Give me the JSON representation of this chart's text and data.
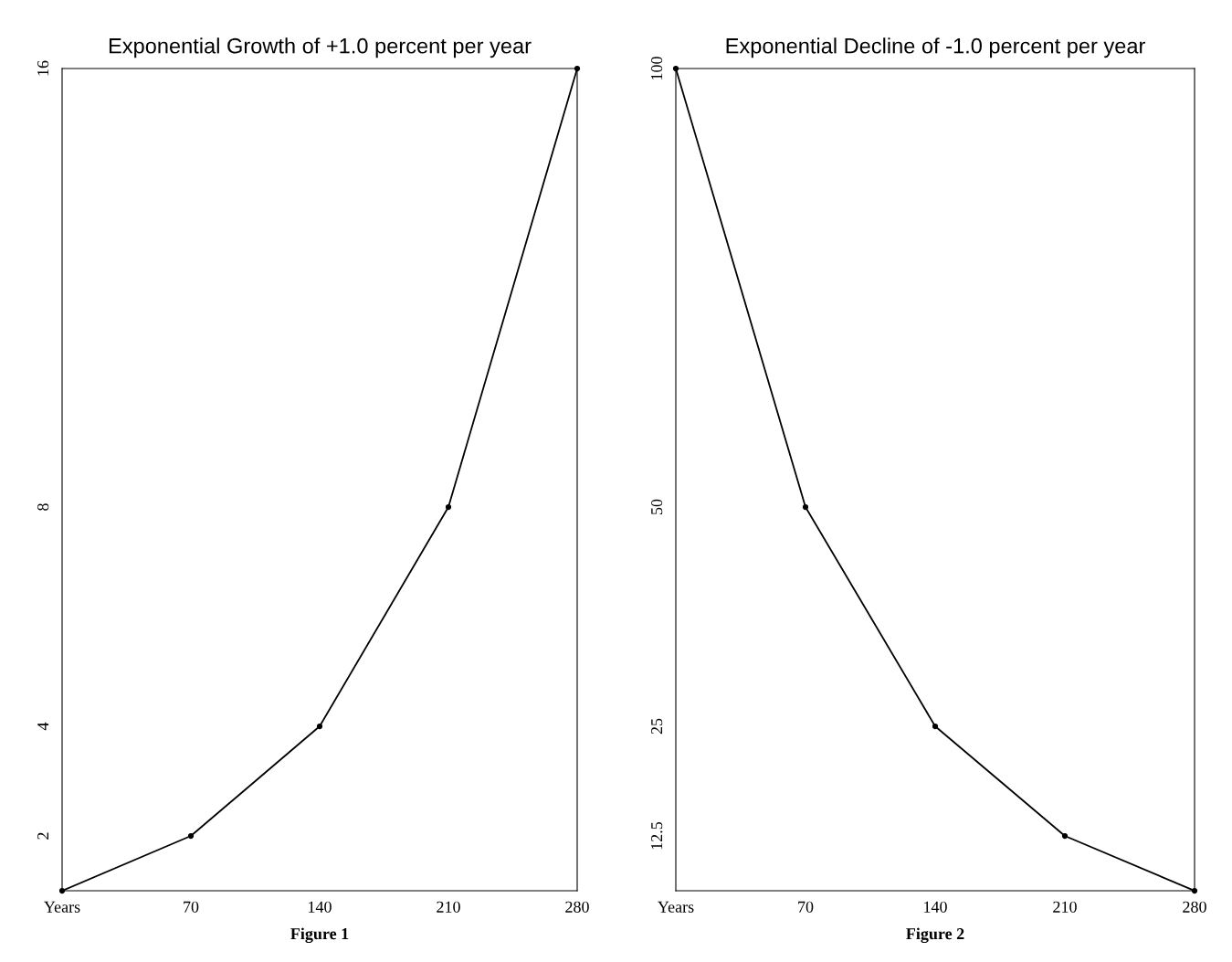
{
  "chart_data": [
    {
      "type": "line",
      "title": "Exponential Growth of +1.0 percent per year",
      "x": [
        0,
        70,
        140,
        210,
        280
      ],
      "series": [
        {
          "color": "#000000",
          "values": [
            1,
            2,
            4,
            8,
            16
          ]
        }
      ],
      "xlim": [
        0,
        280
      ],
      "xticks": [
        {
          "value": 0,
          "label": "Years"
        },
        70,
        140,
        210,
        280
      ],
      "ylim": [
        1,
        16
      ],
      "yticks": [
        2,
        4,
        8,
        16
      ],
      "grid": false,
      "legend": false,
      "marker": "circle",
      "line_style": "solid",
      "annotations": [
        "Figure 1"
      ]
    },
    {
      "type": "line",
      "title": "Exponential Decline of -1.0 percent per year",
      "x": [
        0,
        70,
        140,
        210,
        280
      ],
      "series": [
        {
          "color": "#000000",
          "values": [
            100,
            50,
            25,
            12.5,
            6.25
          ]
        }
      ],
      "xlim": [
        0,
        280
      ],
      "xticks": [
        {
          "value": 0,
          "label": "Years"
        },
        70,
        140,
        210,
        280
      ],
      "ylim": [
        6.25,
        100
      ],
      "yticks": [
        12.5,
        25,
        50,
        100
      ],
      "grid": false,
      "legend": false,
      "marker": "circle",
      "line_style": "solid",
      "annotations": [
        "Figure 2"
      ]
    }
  ]
}
